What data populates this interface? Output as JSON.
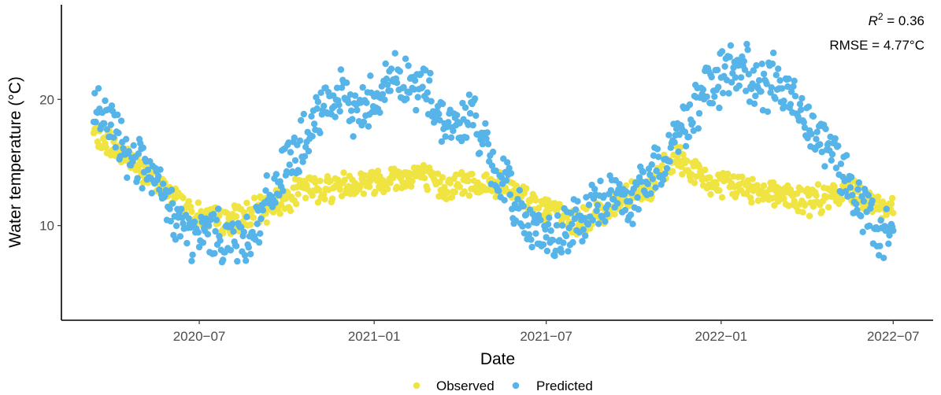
{
  "chart_data": {
    "type": "scatter",
    "xlabel": "Date",
    "ylabel": "Water temperature (°C)",
    "x_ticks": [
      "2020-07",
      "2021-01",
      "2021-07",
      "2022-01",
      "2022-07"
    ],
    "y_ticks": [
      10,
      20
    ],
    "xlim": [
      "2020-02-07",
      "2022-08-12"
    ],
    "ylim": [
      2.5,
      27.5
    ],
    "grid": false,
    "legend_position": "bottom",
    "annotation": {
      "r2_label": "R",
      "r2_sup": "2",
      "r2_value": " = 0.36",
      "rmse": "RMSE = 4.77°C"
    },
    "series": [
      {
        "name": "Observed",
        "color": "#f0e442",
        "points": [
          [
            "2020-03-12",
            17.3
          ],
          [
            "2020-03-20",
            16.8
          ],
          [
            "2020-03-28",
            16.7
          ],
          [
            "2020-04-05",
            16.0
          ],
          [
            "2020-04-15",
            15.6
          ],
          [
            "2020-04-25",
            15.0
          ],
          [
            "2020-05-05",
            14.2
          ],
          [
            "2020-05-15",
            13.6
          ],
          [
            "2020-05-25",
            13.0
          ],
          [
            "2020-06-05",
            12.3
          ],
          [
            "2020-06-15",
            11.6
          ],
          [
            "2020-06-25",
            11.0
          ],
          [
            "2020-07-05",
            10.6
          ],
          [
            "2020-07-15",
            10.4
          ],
          [
            "2020-07-25",
            10.3
          ],
          [
            "2020-08-05",
            10.5
          ],
          [
            "2020-08-15",
            10.7
          ],
          [
            "2020-08-25",
            10.9
          ],
          [
            "2020-09-05",
            11.2
          ],
          [
            "2020-09-15",
            11.6
          ],
          [
            "2020-09-25",
            12.0
          ],
          [
            "2020-10-05",
            12.4
          ],
          [
            "2020-10-15",
            12.8
          ],
          [
            "2020-10-25",
            13.0
          ],
          [
            "2020-11-05",
            12.9
          ],
          [
            "2020-11-15",
            13.0
          ],
          [
            "2020-11-25",
            13.2
          ],
          [
            "2020-12-05",
            13.3
          ],
          [
            "2020-12-15",
            13.4
          ],
          [
            "2020-12-25",
            13.5
          ],
          [
            "2021-01-05",
            13.6
          ],
          [
            "2021-01-15",
            13.7
          ],
          [
            "2021-01-25",
            13.8
          ],
          [
            "2021-02-05",
            13.9
          ],
          [
            "2021-02-15",
            14.2
          ],
          [
            "2021-02-25",
            13.7
          ],
          [
            "2021-03-05",
            13.3
          ],
          [
            "2021-03-15",
            13.1
          ],
          [
            "2021-03-25",
            13.2
          ],
          [
            "2021-04-05",
            13.3
          ],
          [
            "2021-04-15",
            13.4
          ],
          [
            "2021-04-25",
            13.3
          ],
          [
            "2021-05-05",
            13.2
          ],
          [
            "2021-05-15",
            13.0
          ],
          [
            "2021-05-25",
            12.8
          ],
          [
            "2021-06-05",
            12.4
          ],
          [
            "2021-06-15",
            11.9
          ],
          [
            "2021-06-25",
            11.5
          ],
          [
            "2021-07-05",
            11.1
          ],
          [
            "2021-07-15",
            10.7
          ],
          [
            "2021-07-25",
            10.4
          ],
          [
            "2021-08-05",
            10.3
          ],
          [
            "2021-08-15",
            10.5
          ],
          [
            "2021-08-25",
            10.9
          ],
          [
            "2021-09-05",
            11.4
          ],
          [
            "2021-09-15",
            12.0
          ],
          [
            "2021-09-25",
            12.6
          ],
          [
            "2021-10-05",
            13.1
          ],
          [
            "2021-10-15",
            12.4
          ],
          [
            "2021-10-25",
            13.8
          ],
          [
            "2021-11-05",
            14.6
          ],
          [
            "2021-11-15",
            15.3
          ],
          [
            "2021-11-25",
            14.8
          ],
          [
            "2021-12-05",
            14.2
          ],
          [
            "2021-12-15",
            13.6
          ],
          [
            "2021-12-25",
            13.3
          ],
          [
            "2022-01-05",
            13.1
          ],
          [
            "2022-01-15",
            13.2
          ],
          [
            "2022-01-25",
            13.0
          ],
          [
            "2022-02-05",
            12.9
          ],
          [
            "2022-02-15",
            12.8
          ],
          [
            "2022-02-25",
            12.7
          ],
          [
            "2022-03-05",
            12.5
          ],
          [
            "2022-03-15",
            12.2
          ],
          [
            "2022-03-25",
            12.0
          ],
          [
            "2022-04-05",
            12.0
          ],
          [
            "2022-04-15",
            12.1
          ],
          [
            "2022-04-25",
            12.2
          ],
          [
            "2022-05-05",
            12.5
          ],
          [
            "2022-05-15",
            13.0
          ],
          [
            "2022-05-25",
            12.6
          ],
          [
            "2022-06-05",
            12.1
          ],
          [
            "2022-06-15",
            11.6
          ],
          [
            "2022-06-25",
            11.2
          ],
          [
            "2022-07-01",
            11.0
          ]
        ]
      },
      {
        "name": "Predicted",
        "color": "#56b4e9",
        "points": [
          [
            "2020-03-12",
            19.0
          ],
          [
            "2020-03-20",
            18.7
          ],
          [
            "2020-03-28",
            18.0
          ],
          [
            "2020-04-05",
            17.2
          ],
          [
            "2020-04-15",
            16.0
          ],
          [
            "2020-04-25",
            15.5
          ],
          [
            "2020-05-05",
            14.6
          ],
          [
            "2020-05-15",
            13.2
          ],
          [
            "2020-05-25",
            12.1
          ],
          [
            "2020-06-05",
            10.9
          ],
          [
            "2020-06-15",
            9.8
          ],
          [
            "2020-06-25",
            8.9
          ],
          [
            "2020-07-05",
            9.4
          ],
          [
            "2020-07-15",
            9.6
          ],
          [
            "2020-07-25",
            9.2
          ],
          [
            "2020-08-05",
            9.0
          ],
          [
            "2020-08-15",
            8.8
          ],
          [
            "2020-08-25",
            9.6
          ],
          [
            "2020-09-05",
            10.8
          ],
          [
            "2020-09-15",
            12.6
          ],
          [
            "2020-09-25",
            14.0
          ],
          [
            "2020-10-05",
            15.2
          ],
          [
            "2020-10-15",
            16.2
          ],
          [
            "2020-10-25",
            17.2
          ],
          [
            "2020-11-05",
            18.6
          ],
          [
            "2020-11-15",
            19.8
          ],
          [
            "2020-11-25",
            20.2
          ],
          [
            "2020-12-05",
            19.5
          ],
          [
            "2020-12-15",
            19.0
          ],
          [
            "2020-12-25",
            19.8
          ],
          [
            "2021-01-05",
            20.6
          ],
          [
            "2021-01-15",
            21.3
          ],
          [
            "2021-01-25",
            22.0
          ],
          [
            "2021-02-05",
            21.4
          ],
          [
            "2021-02-15",
            20.6
          ],
          [
            "2021-02-25",
            21.1
          ],
          [
            "2021-03-05",
            19.5
          ],
          [
            "2021-03-15",
            18.4
          ],
          [
            "2021-03-25",
            17.8
          ],
          [
            "2021-04-05",
            18.1
          ],
          [
            "2021-04-15",
            19.0
          ],
          [
            "2021-04-25",
            17.0
          ],
          [
            "2021-05-05",
            14.2
          ],
          [
            "2021-05-15",
            13.8
          ],
          [
            "2021-05-25",
            12.5
          ],
          [
            "2021-06-05",
            11.0
          ],
          [
            "2021-06-15",
            10.2
          ],
          [
            "2021-06-25",
            9.6
          ],
          [
            "2021-07-05",
            8.6
          ],
          [
            "2021-07-15",
            9.0
          ],
          [
            "2021-07-25",
            9.7
          ],
          [
            "2021-08-05",
            10.2
          ],
          [
            "2021-08-15",
            10.9
          ],
          [
            "2021-08-25",
            11.6
          ],
          [
            "2021-09-05",
            12.4
          ],
          [
            "2021-09-15",
            12.3
          ],
          [
            "2021-09-25",
            11.6
          ],
          [
            "2021-10-05",
            12.8
          ],
          [
            "2021-10-15",
            13.6
          ],
          [
            "2021-10-25",
            14.4
          ],
          [
            "2021-11-05",
            15.8
          ],
          [
            "2021-11-15",
            16.9
          ],
          [
            "2021-11-25",
            18.4
          ],
          [
            "2021-12-05",
            19.4
          ],
          [
            "2021-12-15",
            20.4
          ],
          [
            "2021-12-25",
            21.2
          ],
          [
            "2022-01-05",
            22.0
          ],
          [
            "2022-01-15",
            22.4
          ],
          [
            "2022-01-25",
            22.7
          ],
          [
            "2022-02-05",
            21.3
          ],
          [
            "2022-02-15",
            20.6
          ],
          [
            "2022-02-25",
            21.5
          ],
          [
            "2022-03-05",
            20.9
          ],
          [
            "2022-03-15",
            20.0
          ],
          [
            "2022-03-25",
            19.4
          ],
          [
            "2022-04-05",
            18.2
          ],
          [
            "2022-04-15",
            17.4
          ],
          [
            "2022-04-25",
            16.2
          ],
          [
            "2022-05-05",
            14.9
          ],
          [
            "2022-05-15",
            13.4
          ],
          [
            "2022-05-25",
            12.0
          ],
          [
            "2022-06-05",
            10.8
          ],
          [
            "2022-06-15",
            8.8
          ],
          [
            "2022-06-25",
            9.8
          ],
          [
            "2022-07-01",
            9.6
          ]
        ]
      }
    ]
  }
}
